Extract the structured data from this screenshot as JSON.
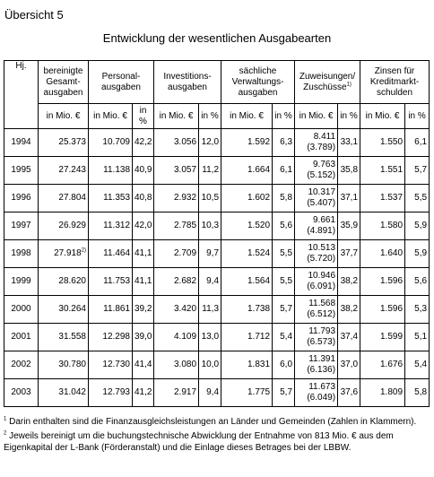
{
  "overview_label": "Übersicht 5",
  "title": "Entwicklung der wesentlichen Ausgabearten",
  "headers": {
    "year": "Hj.",
    "total": "bereinigte Gesamt-ausgaben",
    "personnel": "Personal-ausgaben",
    "investment": "Investitions-ausgaben",
    "material": "sächliche Verwaltungs-ausgaben",
    "transfers": "Zuweisungen/ Zuschüsse",
    "transfers_footnote": "1)",
    "interest": "Zinsen für Kreditmarkt-schulden"
  },
  "units": {
    "total": "in Mio. €",
    "mio": "in Mio. €",
    "pct": "in %"
  },
  "rows": [
    {
      "year": "1994",
      "total": "25.373",
      "total_note": "",
      "pers": "10.709",
      "pers_pct": "42,2",
      "inv": "3.056",
      "inv_pct": "12,0",
      "mat": "1.592",
      "mat_pct": "6,3",
      "trans": "8.411",
      "trans_sub": "(3.789)",
      "trans_pct": "33,1",
      "int": "1.550",
      "int_pct": "6,1"
    },
    {
      "year": "1995",
      "total": "27.243",
      "total_note": "",
      "pers": "11.138",
      "pers_pct": "40,9",
      "inv": "3.057",
      "inv_pct": "11,2",
      "mat": "1.664",
      "mat_pct": "6,1",
      "trans": "9.763",
      "trans_sub": "(5.152)",
      "trans_pct": "35,8",
      "int": "1.551",
      "int_pct": "5,7"
    },
    {
      "year": "1996",
      "total": "27.804",
      "total_note": "",
      "pers": "11.353",
      "pers_pct": "40,8",
      "inv": "2.932",
      "inv_pct": "10,5",
      "mat": "1.602",
      "mat_pct": "5,8",
      "trans": "10.317",
      "trans_sub": "(5.407)",
      "trans_pct": "37,1",
      "int": "1.537",
      "int_pct": "5,5"
    },
    {
      "year": "1997",
      "total": "26.929",
      "total_note": "",
      "pers": "11.312",
      "pers_pct": "42,0",
      "inv": "2.785",
      "inv_pct": "10,3",
      "mat": "1.520",
      "mat_pct": "5,6",
      "trans": "9.661",
      "trans_sub": "(4.891)",
      "trans_pct": "35,9",
      "int": "1.580",
      "int_pct": "5,9"
    },
    {
      "year": "1998",
      "total": "27.918",
      "total_note": "2)",
      "pers": "11.464",
      "pers_pct": "41,1",
      "inv": "2.709",
      "inv_pct": "9,7",
      "mat": "1.524",
      "mat_pct": "5,5",
      "trans": "10.513",
      "trans_sub": "(5.720)",
      "trans_pct": "37,7",
      "int": "1.640",
      "int_pct": "5,9"
    },
    {
      "year": "1999",
      "total": "28.620",
      "total_note": "",
      "pers": "11.753",
      "pers_pct": "41,1",
      "inv": "2.682",
      "inv_pct": "9,4",
      "mat": "1.564",
      "mat_pct": "5,5",
      "trans": "10.946",
      "trans_sub": "(6.091)",
      "trans_pct": "38,2",
      "int": "1.596",
      "int_pct": "5,6"
    },
    {
      "year": "2000",
      "total": "30.264",
      "total_note": "",
      "pers": "11.861",
      "pers_pct": "39,2",
      "inv": "3.420",
      "inv_pct": "11,3",
      "mat": "1.738",
      "mat_pct": "5,7",
      "trans": "11.568",
      "trans_sub": "(6.512)",
      "trans_pct": "38,2",
      "int": "1.596",
      "int_pct": "5,3"
    },
    {
      "year": "2001",
      "total": "31.558",
      "total_note": "",
      "pers": "12.298",
      "pers_pct": "39,0",
      "inv": "4.109",
      "inv_pct": "13,0",
      "mat": "1.712",
      "mat_pct": "5,4",
      "trans": "11.793",
      "trans_sub": "(6.573)",
      "trans_pct": "37,4",
      "int": "1.599",
      "int_pct": "5,1"
    },
    {
      "year": "2002",
      "total": "30.780",
      "total_note": "",
      "pers": "12.730",
      "pers_pct": "41,4",
      "inv": "3.080",
      "inv_pct": "10,0",
      "mat": "1.831",
      "mat_pct": "6,0",
      "trans": "11.391",
      "trans_sub": "(6.136)",
      "trans_pct": "37,0",
      "int": "1.676",
      "int_pct": "5,4"
    },
    {
      "year": "2003",
      "total": "31.042",
      "total_note": "",
      "pers": "12.793",
      "pers_pct": "41,2",
      "inv": "2.917",
      "inv_pct": "9,4",
      "mat": "1.775",
      "mat_pct": "5,7",
      "trans": "11.673",
      "trans_sub": "(6.049)",
      "trans_pct": "37,6",
      "int": "1.809",
      "int_pct": "5,8"
    }
  ],
  "footnotes": [
    {
      "mark": "1",
      "text": "Darin enthalten sind die Finanzausgleichsleistungen an Länder und Gemeinden (Zahlen in Klammern)."
    },
    {
      "mark": "2",
      "text": "Jeweils bereinigt um die buchungstechnische Abwicklung der Entnahme von 813 Mio. € aus dem Eigenkapital der L-Bank (Förderanstalt) und die Einlage dieses Betrages bei der LBBW."
    }
  ]
}
